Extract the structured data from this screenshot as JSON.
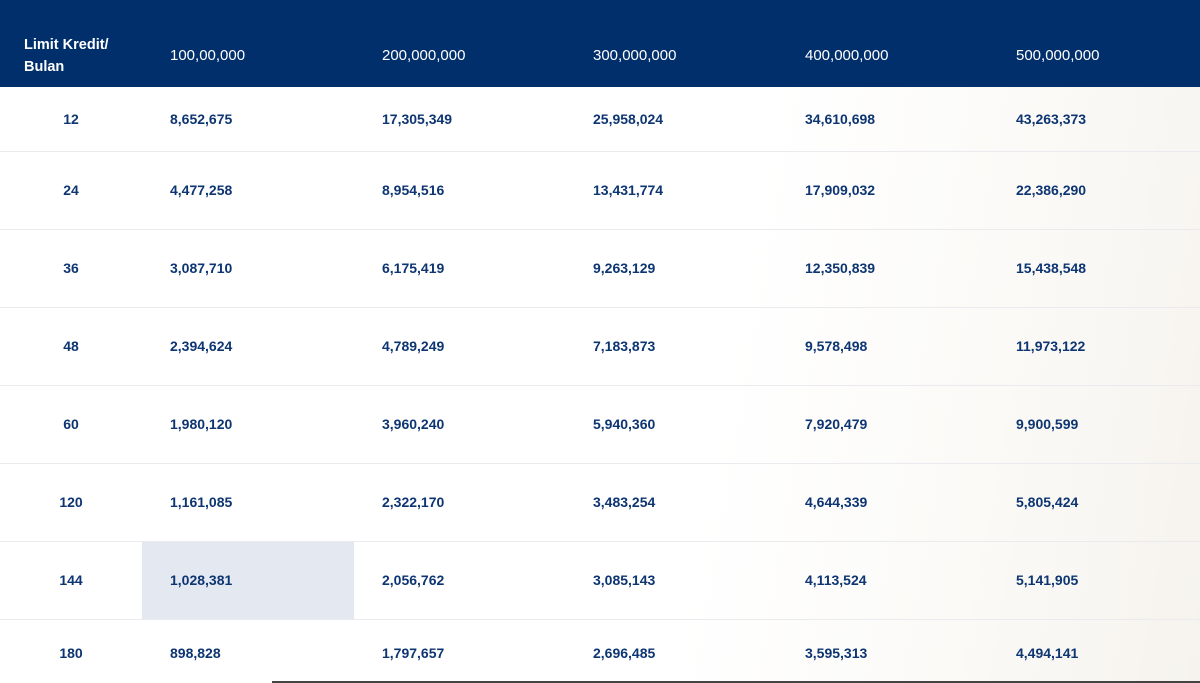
{
  "table": {
    "header": {
      "corner_label_line1": "Limit Kredit/",
      "corner_label_line2": "Bulan",
      "limits": [
        "100,00,000",
        "200,000,000",
        "300,000,000",
        "400,000,000",
        "500,000,000"
      ]
    },
    "rows": [
      {
        "tenor": "12",
        "values": [
          "8,652,675",
          "17,305,349",
          "25,958,024",
          "34,610,698",
          "43,263,373"
        ]
      },
      {
        "tenor": "24",
        "values": [
          "4,477,258",
          "8,954,516",
          "13,431,774",
          "17,909,032",
          "22,386,290"
        ]
      },
      {
        "tenor": "36",
        "values": [
          "3,087,710",
          "6,175,419",
          "9,263,129",
          "12,350,839",
          "15,438,548"
        ]
      },
      {
        "tenor": "48",
        "values": [
          "2,394,624",
          "4,789,249",
          "7,183,873",
          "9,578,498",
          "11,973,122"
        ]
      },
      {
        "tenor": "60",
        "values": [
          "1,980,120",
          "3,960,240",
          "5,940,360",
          "7,920,479",
          "9,900,599"
        ]
      },
      {
        "tenor": "120",
        "values": [
          "1,161,085",
          "2,322,170",
          "3,483,254",
          "4,644,339",
          "5,805,424"
        ]
      },
      {
        "tenor": "144",
        "values": [
          "1,028,381",
          "2,056,762",
          "3,085,143",
          "4,113,524",
          "5,141,905"
        ]
      },
      {
        "tenor": "180",
        "values": [
          "898,828",
          "1,797,657",
          "2,696,485",
          "3,595,313",
          "4,494,141"
        ]
      }
    ],
    "highlighted_cell": {
      "row": 6,
      "col": 0
    }
  },
  "colors": {
    "header_background": "#002f6c",
    "cell_text": "#0d3572",
    "highlight_background": "#e4e8f1"
  }
}
